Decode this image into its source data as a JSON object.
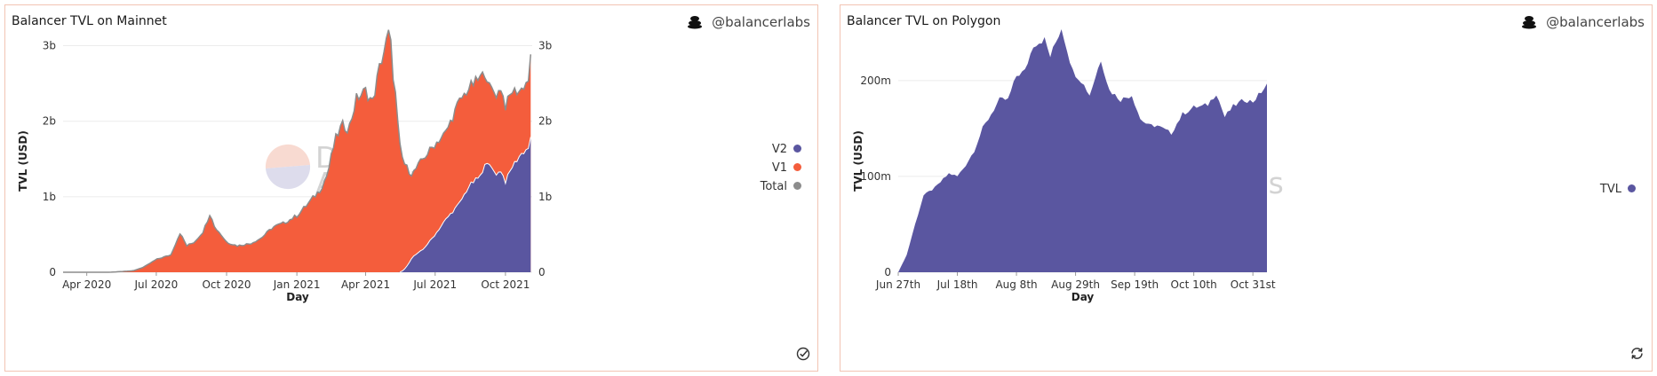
{
  "charts": [
    {
      "title": "Balancer TVL on Mainnet",
      "brand": "@balancerlabs",
      "legend": [
        {
          "name": "V2",
          "color": "#5a56a0"
        },
        {
          "name": "V1",
          "color": "#f45d3c"
        },
        {
          "name": "Total",
          "color": "#8c8c8c"
        }
      ],
      "corner_icon": "check-circle-icon"
    },
    {
      "title": "Balancer TVL on Polygon",
      "brand": "@balancerlabs",
      "legend": [
        {
          "name": "TVL",
          "color": "#5a56a0"
        }
      ],
      "corner_icon": "refresh-icon"
    }
  ],
  "watermark": {
    "line1": "Dune",
    "line2": "Analytics"
  },
  "chart_data": [
    {
      "type": "area",
      "title": "Balancer TVL on Mainnet",
      "xlabel": "Day",
      "ylabel": "TVL (USD)",
      "x_ticks": [
        "Apr 2020",
        "Jul 2020",
        "Oct 2020",
        "Jan 2021",
        "Apr 2021",
        "Jul 2021",
        "Oct 2021"
      ],
      "y_ticks": [
        "0",
        "1b",
        "2b",
        "3b"
      ],
      "y_ticks_right": [
        "0",
        "1b",
        "2b",
        "3b"
      ],
      "ylim": [
        0,
        3300000000
      ],
      "grid": true,
      "legend_position": "right",
      "stacked": true,
      "x": [
        "2020-03-01",
        "2020-04-01",
        "2020-05-01",
        "2020-06-01",
        "2020-06-15",
        "2020-07-01",
        "2020-07-20",
        "2020-08-01",
        "2020-08-10",
        "2020-08-20",
        "2020-09-01",
        "2020-09-10",
        "2020-09-15",
        "2020-09-20",
        "2020-10-01",
        "2020-10-15",
        "2020-11-01",
        "2020-11-15",
        "2020-12-01",
        "2020-12-15",
        "2021-01-01",
        "2021-01-15",
        "2021-02-01",
        "2021-02-10",
        "2021-02-20",
        "2021-03-01",
        "2021-03-10",
        "2021-03-20",
        "2021-04-01",
        "2021-04-10",
        "2021-04-20",
        "2021-05-01",
        "2021-05-04",
        "2021-05-08",
        "2021-05-10",
        "2021-05-15",
        "2021-05-20",
        "2021-05-25",
        "2021-06-01",
        "2021-06-15",
        "2021-07-01",
        "2021-07-15",
        "2021-08-01",
        "2021-08-15",
        "2021-09-01",
        "2021-09-05",
        "2021-09-10",
        "2021-09-20",
        "2021-09-25",
        "2021-10-01",
        "2021-10-10",
        "2021-10-20",
        "2021-10-31",
        "2021-11-05"
      ],
      "series": [
        {
          "name": "V2",
          "values": [
            0,
            0,
            0,
            0,
            0,
            0,
            0,
            0,
            0,
            0,
            0,
            0,
            0,
            0,
            0,
            0,
            0,
            0,
            0,
            0,
            0,
            0,
            0,
            0,
            0,
            0,
            0,
            0,
            0,
            0,
            0,
            0,
            0,
            0,
            0,
            0,
            20000000,
            80000000,
            200000000,
            300000000,
            500000000,
            700000000,
            900000000,
            1150000000,
            1300000000,
            1520000000,
            1400000000,
            1300000000,
            1350000000,
            1200000000,
            1400000000,
            1550000000,
            1650000000,
            1830000000
          ]
        },
        {
          "name": "V1",
          "values": [
            0,
            0,
            0,
            20000000,
            70000000,
            170000000,
            230000000,
            520000000,
            350000000,
            400000000,
            550000000,
            800000000,
            600000000,
            550000000,
            400000000,
            350000000,
            380000000,
            450000000,
            600000000,
            650000000,
            750000000,
            900000000,
            1100000000,
            1300000000,
            1750000000,
            1950000000,
            1900000000,
            2300000000,
            2400000000,
            2250000000,
            2750000000,
            3150000000,
            3000000000,
            2500000000,
            2350000000,
            1700000000,
            1450000000,
            1300000000,
            1100000000,
            1200000000,
            1200000000,
            1150000000,
            1350000000,
            1300000000,
            1300000000,
            1150000000,
            1050000000,
            1050000000,
            1100000000,
            1000000000,
            1000000000,
            850000000,
            900000000,
            1180000000
          ]
        }
      ]
    },
    {
      "type": "area",
      "title": "Balancer TVL on Polygon",
      "xlabel": "Day",
      "ylabel": "TVL (USD)",
      "x_ticks": [
        "Jun 27th",
        "Jul 18th",
        "Aug 8th",
        "Aug 29th",
        "Sep 19th",
        "Oct 10th",
        "Oct 31st"
      ],
      "y_ticks": [
        "0",
        "100m",
        "200m"
      ],
      "ylim": [
        0,
        260000000
      ],
      "grid": true,
      "legend_position": "right",
      "x": [
        "2021-06-27",
        "2021-06-30",
        "2021-07-03",
        "2021-07-06",
        "2021-07-10",
        "2021-07-15",
        "2021-07-18",
        "2021-07-21",
        "2021-07-24",
        "2021-07-27",
        "2021-07-30",
        "2021-08-02",
        "2021-08-05",
        "2021-08-08",
        "2021-08-11",
        "2021-08-14",
        "2021-08-16",
        "2021-08-18",
        "2021-08-20",
        "2021-08-24",
        "2021-08-28",
        "2021-08-31",
        "2021-09-03",
        "2021-09-07",
        "2021-09-10",
        "2021-09-14",
        "2021-09-18",
        "2021-09-21",
        "2021-09-24",
        "2021-09-27",
        "2021-10-02",
        "2021-10-06",
        "2021-10-10",
        "2021-10-13",
        "2021-10-15",
        "2021-10-18",
        "2021-10-21",
        "2021-10-24",
        "2021-10-28",
        "2021-10-31",
        "2021-11-05"
      ],
      "series": [
        {
          "name": "TVL",
          "values": [
            0,
            18000000,
            50000000,
            80000000,
            88000000,
            103000000,
            100000000,
            112000000,
            127000000,
            150000000,
            165000000,
            180000000,
            180000000,
            205000000,
            210000000,
            237000000,
            240000000,
            243000000,
            225000000,
            255000000,
            210000000,
            200000000,
            185000000,
            222000000,
            190000000,
            180000000,
            185000000,
            160000000,
            153000000,
            153000000,
            145000000,
            165000000,
            172000000,
            173000000,
            175000000,
            187000000,
            162000000,
            173000000,
            180000000,
            178000000,
            195000000
          ]
        }
      ]
    }
  ]
}
